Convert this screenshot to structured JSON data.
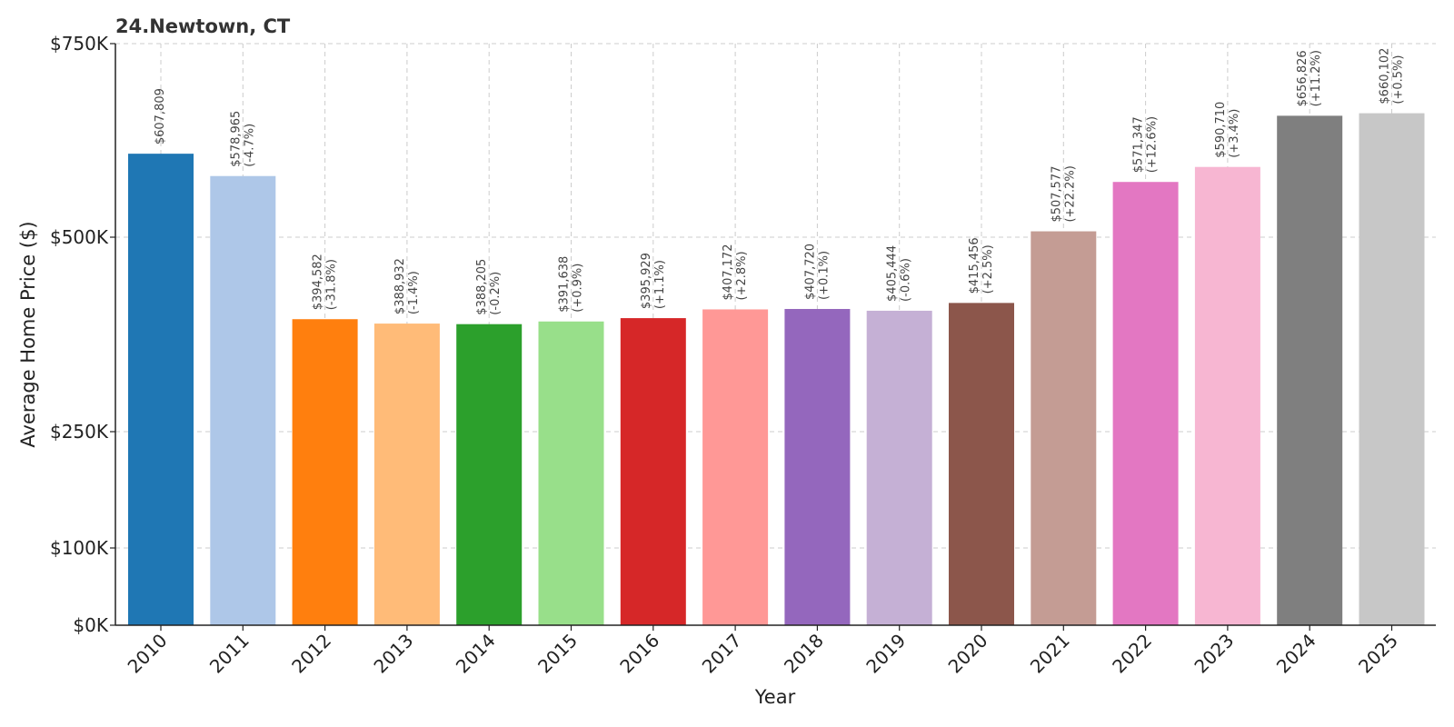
{
  "chart_data": {
    "type": "bar",
    "title": "24.Newtown, CT",
    "xlabel": "Year",
    "ylabel": "Average Home Price ($)",
    "ylim": [
      0,
      750000
    ],
    "grid": true,
    "y_ticks": [
      {
        "value": 0,
        "label": "$0K"
      },
      {
        "value": 100000,
        "label": "$100K"
      },
      {
        "value": 250000,
        "label": "$250K"
      },
      {
        "value": 500000,
        "label": "$500K"
      },
      {
        "value": 750000,
        "label": "$750K"
      }
    ],
    "categories": [
      "2010",
      "2011",
      "2012",
      "2013",
      "2014",
      "2015",
      "2016",
      "2017",
      "2018",
      "2019",
      "2020",
      "2021",
      "2022",
      "2023",
      "2024",
      "2025"
    ],
    "values": [
      607809,
      578965,
      394582,
      388932,
      388205,
      391638,
      395929,
      407172,
      407720,
      405444,
      415456,
      507577,
      571347,
      590710,
      656826,
      660102
    ],
    "value_labels": [
      "$607,809",
      "$578,965",
      "$394,582",
      "$388,932",
      "$388,205",
      "$391,638",
      "$395,929",
      "$407,172",
      "$407,720",
      "$405,444",
      "$415,456",
      "$507,577",
      "$571,347",
      "$590,710",
      "$656,826",
      "$660,102"
    ],
    "change_labels": [
      "",
      "(-4.7%)",
      "(-31.8%)",
      "(-1.4%)",
      "(-0.2%)",
      "(+0.9%)",
      "(+1.1%)",
      "(+2.8%)",
      "(+0.1%)",
      "(-0.6%)",
      "(+2.5%)",
      "(+22.2%)",
      "(+12.6%)",
      "(+3.4%)",
      "(+11.2%)",
      "(+0.5%)"
    ],
    "colors": [
      "#1f77b4",
      "#aec7e8",
      "#ff7f0e",
      "#ffbb78",
      "#2ca02c",
      "#98df8a",
      "#d62728",
      "#ff9896",
      "#9467bd",
      "#c5b0d5",
      "#8c564b",
      "#c49c94",
      "#e377c2",
      "#f7b6d2",
      "#7f7f7f",
      "#c7c7c7"
    ]
  }
}
